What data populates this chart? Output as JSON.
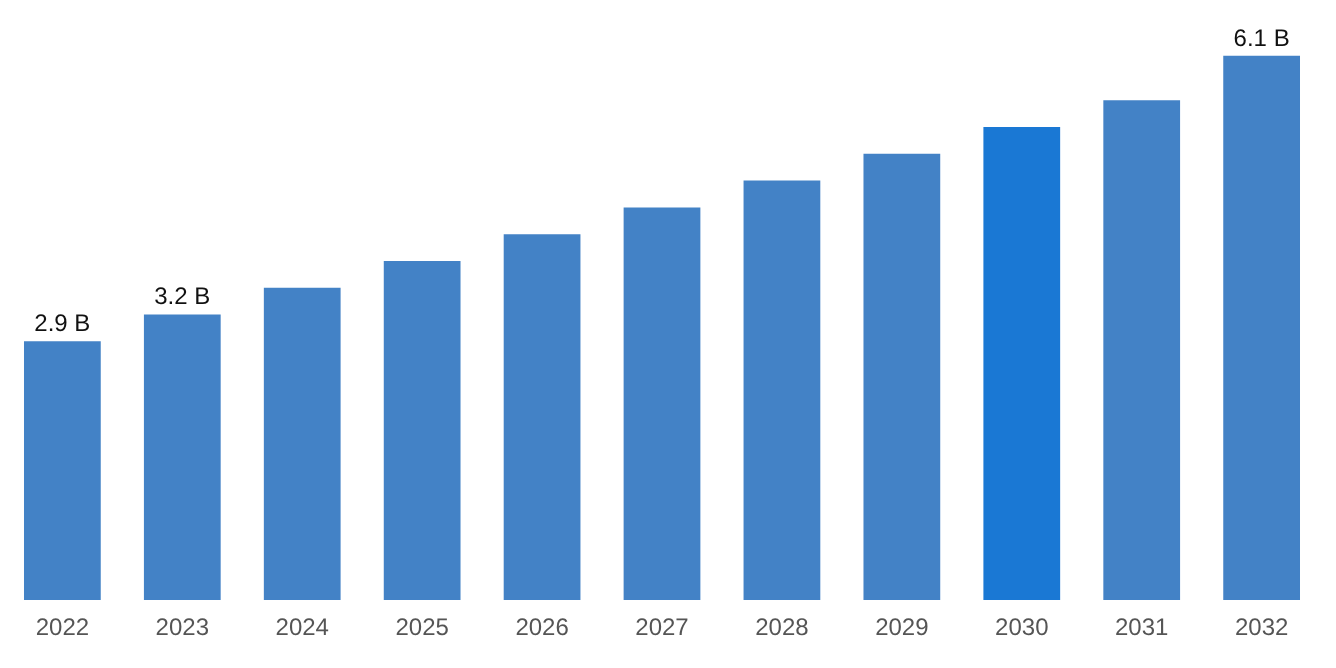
{
  "chart_data": {
    "type": "bar",
    "categories": [
      "2022",
      "2023",
      "2024",
      "2025",
      "2026",
      "2027",
      "2028",
      "2029",
      "2030",
      "2031",
      "2032"
    ],
    "values": [
      2.9,
      3.2,
      3.5,
      3.8,
      4.1,
      4.4,
      4.7,
      5.0,
      5.3,
      5.6,
      6.1
    ],
    "colors": [
      "#4382c6",
      "#4382c6",
      "#4382c6",
      "#4382c6",
      "#4382c6",
      "#4382c6",
      "#4382c6",
      "#4382c6",
      "#1a78d4",
      "#4382c6",
      "#4382c6"
    ],
    "value_labels": [
      "2.9 B",
      "3.2 B",
      null,
      null,
      null,
      null,
      null,
      null,
      null,
      null,
      "6.1 B"
    ],
    "grid": false
  }
}
